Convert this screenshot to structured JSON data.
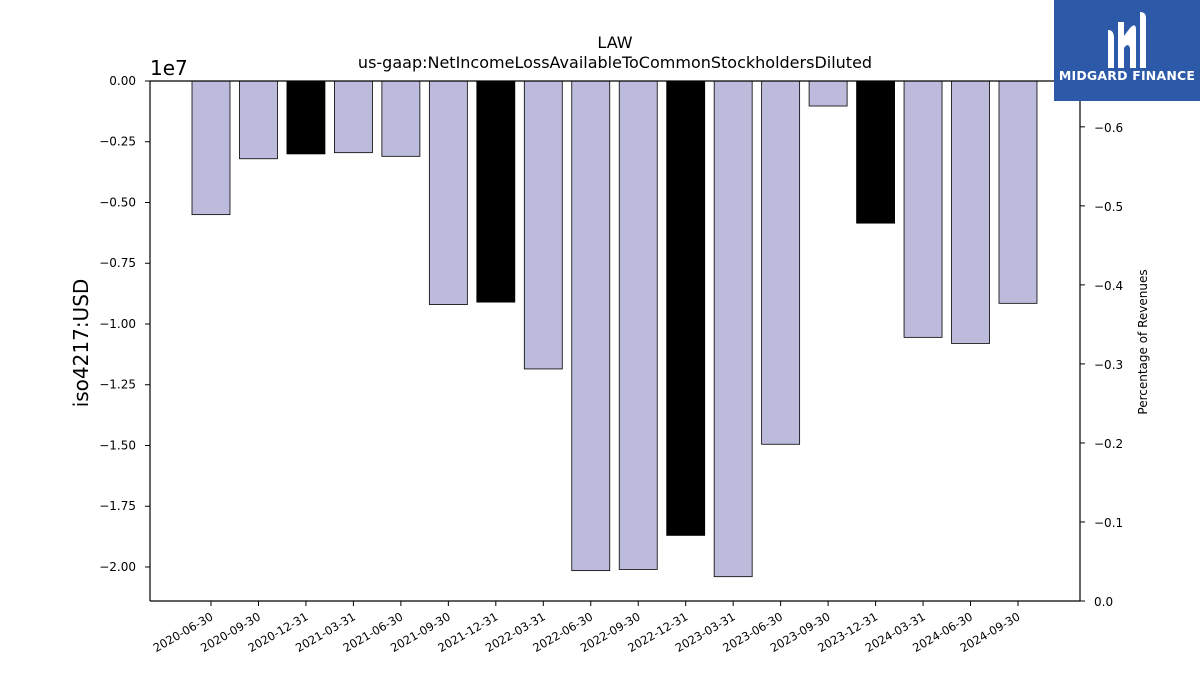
{
  "chart_data": {
    "type": "bar",
    "title": "LAW",
    "subtitle": "us-gaap:NetIncomeLossAvailableToCommonStockholdersDiluted",
    "ylabel": "iso4217:USD",
    "y2label": "Percentage of Revenues",
    "y_offset_label": "1e7",
    "ylim": [
      -21400000,
      0
    ],
    "y_ticks": [
      0,
      -2500000,
      -5000000,
      -7500000,
      -10000000,
      -12500000,
      -15000000,
      -17500000,
      -20000000
    ],
    "y_tick_labels": [
      "0.00",
      "−0.25",
      "−0.50",
      "−0.75",
      "−1.00",
      "−1.25",
      "−1.50",
      "−1.75",
      "−2.00"
    ],
    "y2lim": [
      0,
      -0.658
    ],
    "y2_ticks": [
      0.0,
      -0.1,
      -0.2,
      -0.3,
      -0.4,
      -0.5,
      -0.6
    ],
    "y2_tick_labels": [
      "0.0",
      "−0.1",
      "−0.2",
      "−0.3",
      "−0.4",
      "−0.5",
      "−0.6"
    ],
    "categories": [
      "2020-06-30",
      "2020-09-30",
      "2020-12-31",
      "2021-03-31",
      "2021-06-30",
      "2021-09-30",
      "2021-12-31",
      "2022-03-31",
      "2022-06-30",
      "2022-09-30",
      "2022-12-31",
      "2023-03-31",
      "2023-06-30",
      "2023-09-30",
      "2023-12-31",
      "2024-03-31",
      "2024-06-30",
      "2024-09-30"
    ],
    "values": [
      -5500000,
      -3200000,
      -3000000,
      -2950000,
      -3100000,
      -9200000,
      -9100000,
      -11850000,
      -20150000,
      -20100000,
      -18700000,
      -20400000,
      -14950000,
      -1030000,
      -5850000,
      -10550000,
      -10800000,
      -9150000
    ],
    "colors": [
      "#bdbbdb",
      "#bdbbdb",
      "#000000",
      "#bdbbdb",
      "#bdbbdb",
      "#bdbbdb",
      "#000000",
      "#bdbbdb",
      "#bdbbdb",
      "#bdbbdb",
      "#000000",
      "#bdbbdb",
      "#bdbbdb",
      "#bdbbdb",
      "#000000",
      "#bdbbdb",
      "#bdbbdb",
      "#bdbbdb"
    ],
    "grid": false
  },
  "logo": {
    "text": "MIDGARD FINANCE",
    "bg_color": "#2d5aa8"
  }
}
